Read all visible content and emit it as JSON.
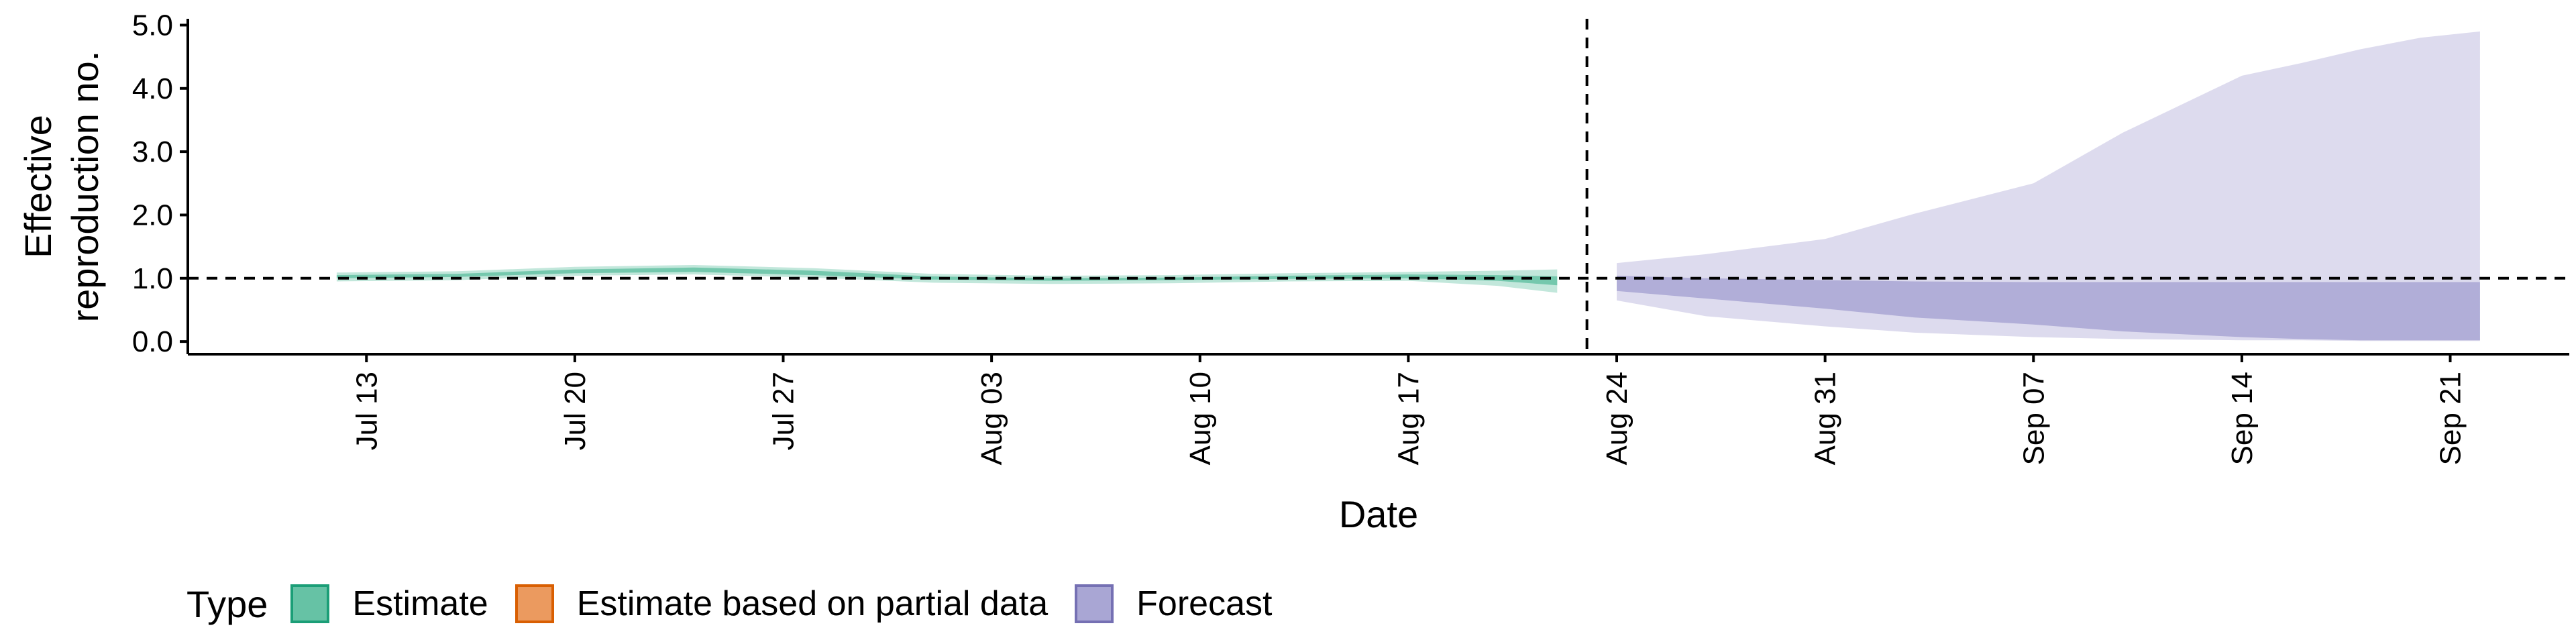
{
  "chart_data": {
    "type": "area",
    "xlabel": "Date",
    "ylabel_lines": [
      "Effective",
      "reproduction no."
    ],
    "x_ticks": [
      "Jul 13",
      "Jul 20",
      "Jul 27",
      "Aug 03",
      "Aug 10",
      "Aug 17",
      "Aug 24",
      "Aug 31",
      "Sep 07",
      "Sep 14",
      "Sep 21"
    ],
    "y_ticks": [
      "0.0",
      "1.0",
      "2.0",
      "3.0",
      "4.0",
      "5.0"
    ],
    "x_range": [
      "2020-07-07",
      "2020-09-25"
    ],
    "ylim": [
      -0.2,
      5.1
    ],
    "grid": false,
    "reference_line_y": 1.0,
    "forecast_start_date": "2020-08-23",
    "legend": {
      "title": "Type",
      "position": "bottom",
      "items": [
        {
          "label": "Estimate",
          "fill": "#66c2a5",
          "stroke": "#1b9e77"
        },
        {
          "label": "Estimate based on partial data",
          "fill": "#eb9a5f",
          "stroke": "#d95f02"
        },
        {
          "label": "Forecast",
          "fill": "#a9a6d4",
          "stroke": "#7570b3"
        }
      ]
    },
    "series": [
      {
        "type": "Estimate",
        "color": "#66c2a5",
        "x": [
          "2020-07-12",
          "2020-07-16",
          "2020-07-20",
          "2020-07-24",
          "2020-07-28",
          "2020-08-01",
          "2020-08-05",
          "2020-08-09",
          "2020-08-13",
          "2020-08-17",
          "2020-08-20",
          "2020-08-22"
        ],
        "outer_lower": [
          0.95,
          0.97,
          1.04,
          1.06,
          1.01,
          0.93,
          0.91,
          0.92,
          0.95,
          0.96,
          0.88,
          0.77
        ],
        "outer_upper": [
          1.09,
          1.11,
          1.18,
          1.21,
          1.16,
          1.07,
          1.04,
          1.05,
          1.08,
          1.1,
          1.12,
          1.14
        ],
        "inner_lower": [
          1.0,
          1.02,
          1.08,
          1.1,
          1.05,
          0.98,
          0.96,
          0.97,
          0.99,
          1.0,
          0.96,
          0.89
        ],
        "inner_upper": [
          1.05,
          1.07,
          1.14,
          1.17,
          1.12,
          1.03,
          1.0,
          1.01,
          1.04,
          1.06,
          1.05,
          1.03
        ]
      },
      {
        "type": "Forecast",
        "color": "#a9a6d4",
        "x": [
          "2020-08-24",
          "2020-08-27",
          "2020-08-31",
          "2020-09-03",
          "2020-09-07",
          "2020-09-10",
          "2020-09-14",
          "2020-09-16",
          "2020-09-18",
          "2020-09-20",
          "2020-09-22"
        ],
        "outer_lower": [
          0.65,
          0.4,
          0.24,
          0.14,
          0.07,
          0.04,
          0.02,
          0.02,
          0.01,
          0.01,
          0.01
        ],
        "outer_upper": [
          1.24,
          1.38,
          1.62,
          2.02,
          2.5,
          3.3,
          4.2,
          4.4,
          4.62,
          4.8,
          4.9
        ],
        "inner_lower": [
          0.8,
          0.68,
          0.52,
          0.38,
          0.27,
          0.16,
          0.07,
          0.04,
          0.02,
          0.02,
          0.02
        ],
        "inner_upper": [
          1.04,
          1.0,
          0.97,
          0.95,
          0.94,
          0.94,
          0.94,
          0.94,
          0.94,
          0.94,
          0.94
        ]
      }
    ]
  }
}
